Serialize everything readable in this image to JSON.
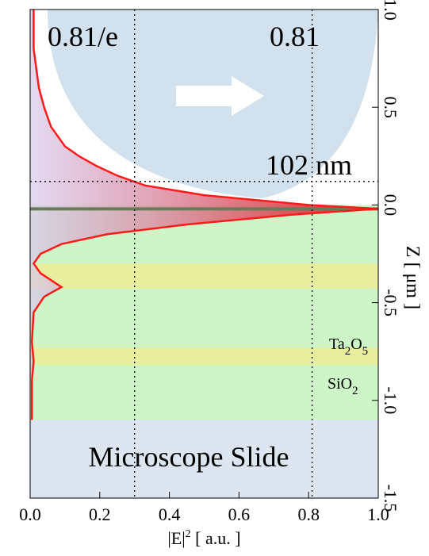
{
  "chart_data": {
    "type": "profile",
    "x": [
      0.01,
      0.01,
      0.025,
      0.04,
      0.06,
      0.1,
      0.14,
      0.19,
      0.25,
      0.33,
      0.5,
      0.8,
      1.0,
      0.75,
      0.45,
      0.22,
      0.09,
      0.03,
      0.01,
      0.03,
      0.09,
      0.04,
      0.01,
      0.005,
      0.01,
      0.005,
      0.005
    ],
    "y": [
      1.0,
      0.8,
      0.6,
      0.5,
      0.4,
      0.3,
      0.25,
      0.2,
      0.15,
      0.1,
      0.05,
      0.0,
      -0.02,
      -0.05,
      -0.1,
      -0.15,
      -0.2,
      -0.25,
      -0.3,
      -0.35,
      -0.42,
      -0.47,
      -0.55,
      -0.7,
      -0.8,
      -0.9,
      -1.1
    ],
    "color": "#ff1a1a",
    "xlim": [
      0,
      1
    ],
    "xticks": [
      {
        "value": 0,
        "label": "0.0"
      },
      0.2,
      0.4,
      0.6,
      0.8,
      {
        "value": 1,
        "label": "1.0"
      }
    ],
    "ylim": [
      -1.5,
      1
    ],
    "yticks": [
      {
        "value": -1.5,
        "label": "-1.5"
      },
      {
        "value": -1,
        "label": "-1.0"
      },
      {
        "value": -0.5,
        "label": "-0.5"
      },
      {
        "value": 0,
        "label": "0.0"
      },
      {
        "value": 0.5,
        "label": "0.5"
      },
      {
        "value": 1,
        "label": "1.0"
      }
    ],
    "xlabel": [
      "|E|",
      "2",
      " [ a.u. ]"
    ],
    "ylabel": "Z [ μm ]",
    "layers": [
      {
        "z": [
          0,
          -1.1
        ],
        "color": "#cdf5c8"
      },
      {
        "z": [
          -1.1,
          -1.5
        ],
        "color": "#dde6f0"
      },
      {
        "z": [
          -0.3,
          -0.43
        ],
        "color": "#e8f0a0"
      },
      {
        "z": [
          -0.73,
          -0.82
        ],
        "color": "#e8f0a0"
      }
    ],
    "interface": -0.02,
    "vlines": [
      0.3,
      0.81
    ],
    "hline": 0.12,
    "annotations": {
      "left": "0.81/e",
      "right": "0.81",
      "depth": "102 nm",
      "ta": [
        "Ta",
        "2",
        "O",
        "5"
      ],
      "si": [
        "SiO",
        "2"
      ],
      "slide": "Microscope Slide"
    }
  }
}
